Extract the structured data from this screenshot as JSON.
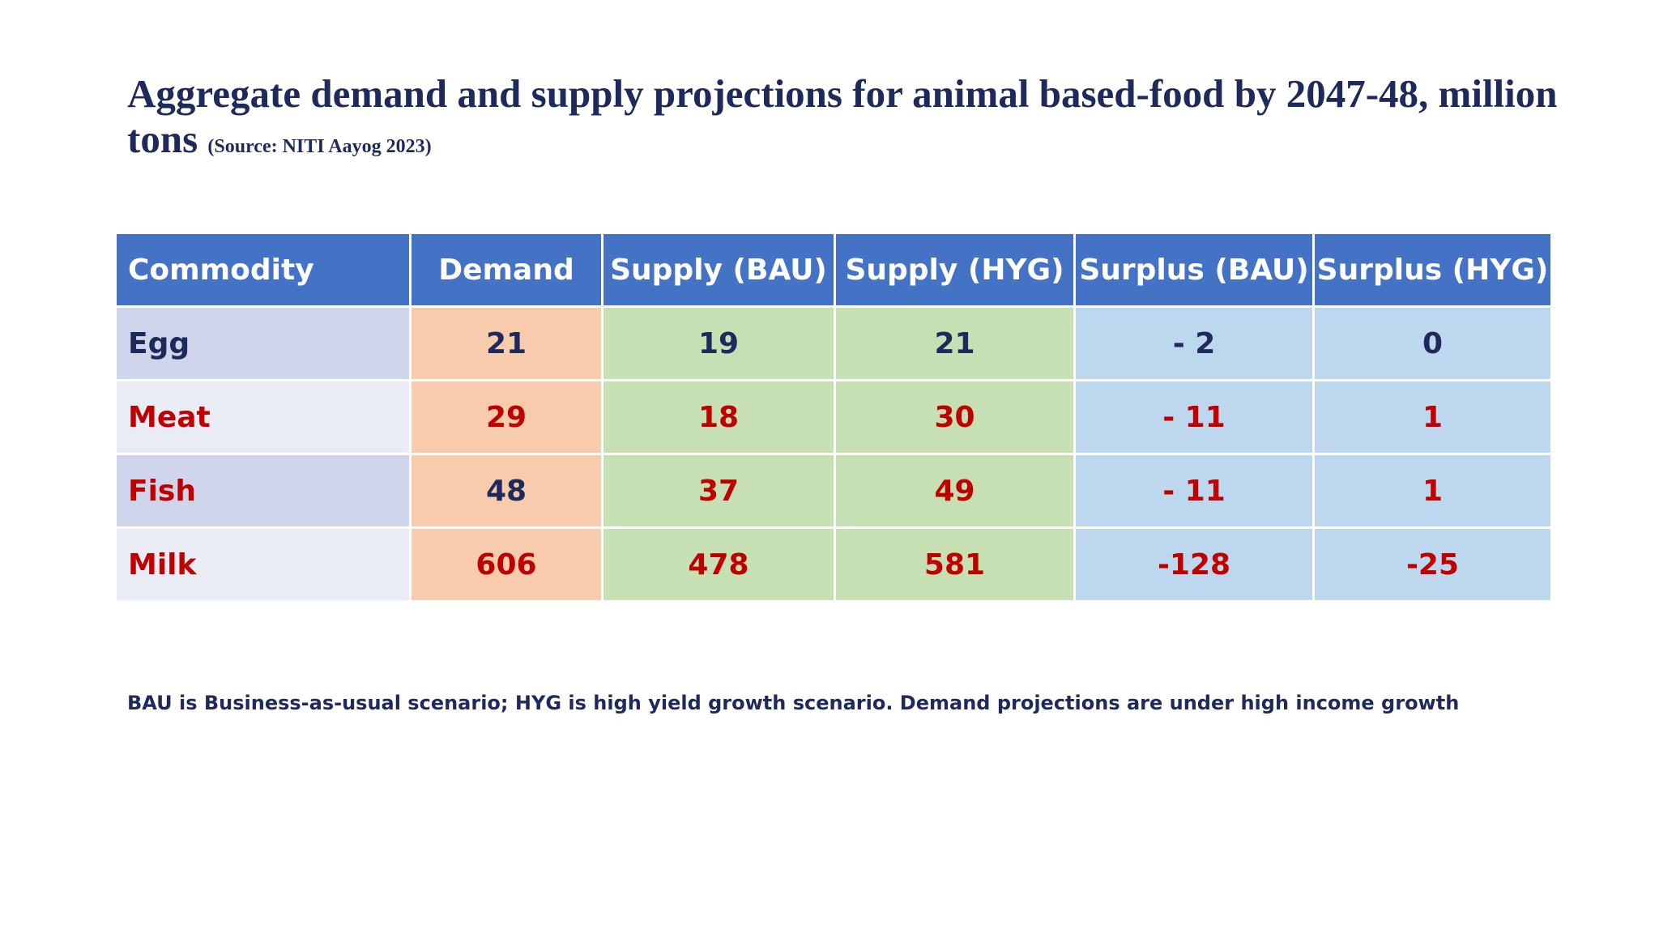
{
  "slide": {
    "title_main": "Aggregate demand and supply projections for animal based-food by 2047-48, million tons",
    "title_source": "(Source: NITI Aayog 2023)",
    "footnote": "BAU is Business-as-usual scenario; HYG is high yield growth scenario. Demand projections are under high income growth"
  },
  "table": {
    "headers": [
      "Commodity",
      "Demand",
      "Supply (BAU)",
      "Supply (HYG)",
      "Surplus (BAU)",
      "Surplus (HYG)"
    ],
    "rows": [
      {
        "commodity": "Egg",
        "demand": "21",
        "supply_bau": "19",
        "supply_hyg": "21",
        "surplus_bau": "- 2",
        "surplus_hyg": "0"
      },
      {
        "commodity": "Meat",
        "demand": "29",
        "supply_bau": "18",
        "supply_hyg": "30",
        "surplus_bau": "- 11",
        "surplus_hyg": "1"
      },
      {
        "commodity": "Fish",
        "demand": "48",
        "supply_bau": "37",
        "supply_hyg": "49",
        "surplus_bau": "- 11",
        "surplus_hyg": "1"
      },
      {
        "commodity": "Milk",
        "demand": "606",
        "supply_bau": "478",
        "supply_hyg": "581",
        "surplus_bau": "-128",
        "surplus_hyg": "-25"
      }
    ]
  },
  "colors": {
    "header_bg": "#4472c4",
    "demand_bg": "#f8cbad",
    "supply_bg": "#c6e0b4",
    "surplus_bg": "#bdd7ee",
    "navy_text": "#1f2a5c",
    "red_text": "#c00000"
  }
}
